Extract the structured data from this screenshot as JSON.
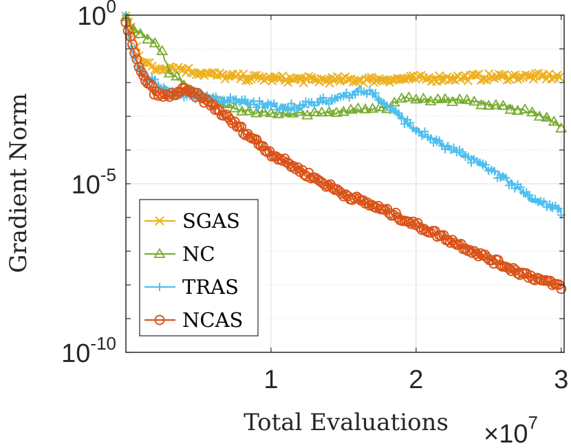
{
  "chart_data": {
    "type": "line",
    "xlabel": "Total Evaluations",
    "ylabel": "Gradient Norm",
    "x_exponent_base": "×10",
    "x_exponent_power": "7",
    "xlim": [
      0,
      3.02
    ],
    "ylim": [
      1e-10,
      1
    ],
    "yscale": "log",
    "xticks": [
      {
        "value": 1,
        "label": "1"
      },
      {
        "value": 2,
        "label": "2"
      },
      {
        "value": 3,
        "label": "3"
      }
    ],
    "yticks": [
      {
        "value": 1,
        "base": "10",
        "power": "0"
      },
      {
        "value": 1e-05,
        "base": "10",
        "power": "-5"
      },
      {
        "value": 1e-10,
        "base": "10",
        "power": "-10"
      }
    ],
    "grid": true,
    "legend_position": "bottom-left",
    "series": [
      {
        "name": "SGAS",
        "color": "#EDB120",
        "marker": "x",
        "x": [
          0,
          0.05,
          0.1,
          0.2,
          0.3,
          0.5,
          0.7,
          1.0,
          1.3,
          1.6,
          2.0,
          2.3,
          2.6,
          3.0
        ],
        "y": [
          0.9,
          0.3,
          0.05,
          0.025,
          0.03,
          0.02,
          0.015,
          0.013,
          0.012,
          0.012,
          0.013,
          0.014,
          0.015,
          0.015
        ]
      },
      {
        "name": "NC",
        "color": "#77AC30",
        "marker": "triangle",
        "x": [
          0,
          0.05,
          0.1,
          0.2,
          0.25,
          0.3,
          0.5,
          0.8,
          1.0,
          1.3,
          1.6,
          1.8,
          1.9,
          2.0,
          2.3,
          2.6,
          2.8,
          2.9,
          3.0
        ],
        "y": [
          0.9,
          0.4,
          0.3,
          0.15,
          0.08,
          0.02,
          0.004,
          0.0015,
          0.0012,
          0.0012,
          0.0015,
          0.0018,
          0.0035,
          0.003,
          0.003,
          0.002,
          0.0013,
          0.0009,
          0.0005
        ]
      },
      {
        "name": "TRAS",
        "color": "#4DBEEE",
        "marker": "plus",
        "x": [
          0,
          0.05,
          0.1,
          0.2,
          0.3,
          0.5,
          0.7,
          1.0,
          1.2,
          1.4,
          1.5,
          1.6,
          1.7,
          1.8,
          2.0,
          2.2,
          2.4,
          2.6,
          2.8,
          3.0
        ],
        "y": [
          0.8,
          0.06,
          0.02,
          0.01,
          0.005,
          0.004,
          0.003,
          0.002,
          0.002,
          0.003,
          0.004,
          0.006,
          0.005,
          0.002,
          0.0004,
          0.00012,
          5e-05,
          1.5e-05,
          3.5e-06,
          1.5e-06
        ]
      },
      {
        "name": "NCAS",
        "color": "#D95319",
        "marker": "circle",
        "x": [
          0,
          0.05,
          0.1,
          0.15,
          0.2,
          0.25,
          0.3,
          0.35,
          0.4,
          0.5,
          0.6,
          0.8,
          1.0,
          1.2,
          1.5,
          1.8,
          2.0,
          2.2,
          2.5,
          2.7,
          2.9,
          3.0
        ],
        "y": [
          0.7,
          0.1,
          0.02,
          0.01,
          0.005,
          0.004,
          0.004,
          0.005,
          0.006,
          0.004,
          0.002,
          0.0004,
          8e-05,
          2.5e-05,
          5e-06,
          1.5e-06,
          6e-07,
          2.5e-07,
          6e-08,
          2.5e-08,
          1.2e-08,
          9e-09
        ]
      }
    ]
  }
}
